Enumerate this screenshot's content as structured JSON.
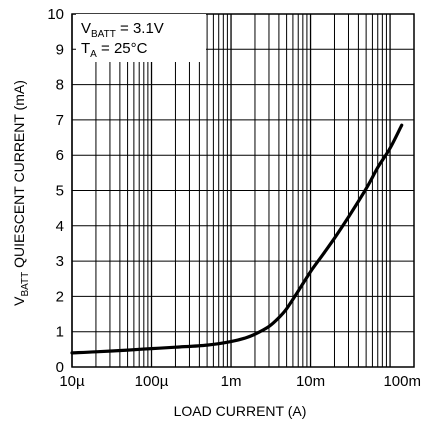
{
  "chart_data": {
    "type": "line",
    "x_scale": "log",
    "xlim": [
      1e-05,
      0.2
    ],
    "ylim": [
      0,
      10
    ],
    "grid": true,
    "x_ticks": [
      {
        "value": 1e-05,
        "label": "10µ"
      },
      {
        "value": 0.0001,
        "label": "100µ"
      },
      {
        "value": 0.001,
        "label": "1m"
      },
      {
        "value": 0.01,
        "label": "10m"
      },
      {
        "value": 0.1,
        "label": "100m"
      }
    ],
    "y_ticks": [
      0,
      1,
      2,
      3,
      4,
      5,
      6,
      7,
      8,
      9,
      10
    ],
    "xlabel": "LOAD CURRENT (A)",
    "ylabel": {
      "main": "V",
      "sub": "BATT",
      "rest": " QUIESCENT CURRENT (mA)"
    },
    "annotation": {
      "line1": {
        "main": "V",
        "sub": "BATT",
        "rest": " = 3.1V"
      },
      "line2": {
        "main": "T",
        "sub": "A",
        "rest": " = 25°C"
      }
    },
    "series": [
      {
        "x": [
          1e-05,
          2e-05,
          5e-05,
          0.0001,
          0.0002,
          0.0005,
          0.001,
          0.0015,
          0.002,
          0.003,
          0.004,
          0.005,
          0.007,
          0.01,
          0.015,
          0.02,
          0.03,
          0.05,
          0.07,
          0.1,
          0.14
        ],
        "y": [
          0.4,
          0.43,
          0.48,
          0.52,
          0.56,
          0.62,
          0.72,
          0.82,
          0.93,
          1.15,
          1.4,
          1.65,
          2.15,
          2.7,
          3.25,
          3.65,
          4.25,
          5.05,
          5.65,
          6.2,
          6.85
        ]
      }
    ],
    "colors": {
      "line": "#000000",
      "grid": "#000000",
      "background": "#ffffff"
    }
  }
}
